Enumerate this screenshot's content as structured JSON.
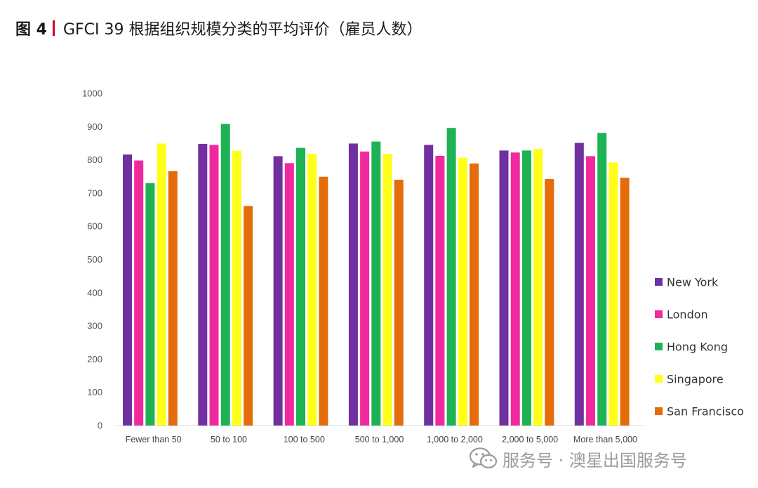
{
  "header": {
    "figure_label": "图 4",
    "title": "GFCI 39 根据组织规模分类的平均评价（雇员人数）"
  },
  "watermark": {
    "text": "服务号 · 澳星出国服务号",
    "icon": "wechat-icon"
  },
  "chart_data": {
    "type": "bar",
    "title": "",
    "xlabel": "",
    "ylabel": "",
    "ylim": [
      0,
      1000
    ],
    "yticks": [
      0,
      100,
      200,
      300,
      400,
      500,
      600,
      700,
      800,
      900,
      1000
    ],
    "grid": false,
    "legend_position": "right",
    "categories": [
      "Fewer than 50",
      "50 to 100",
      "100 to 500",
      "500 to 1,000",
      "1,000 to 2,000",
      "2,000 to 5,000",
      "More than 5,000"
    ],
    "series": [
      {
        "name": "New York",
        "color": "#7030a0",
        "values": [
          816,
          848,
          811,
          849,
          845,
          828,
          851
        ]
      },
      {
        "name": "London",
        "color": "#f0299e",
        "values": [
          798,
          845,
          790,
          825,
          812,
          822,
          811
        ]
      },
      {
        "name": "Hong Kong",
        "color": "#1db254",
        "values": [
          730,
          908,
          836,
          855,
          896,
          828,
          881
        ]
      },
      {
        "name": "Singapore",
        "color": "#ffff1a",
        "values": [
          849,
          827,
          818,
          818,
          806,
          833,
          792
        ]
      },
      {
        "name": "San Francisco",
        "color": "#e46c0a",
        "values": [
          766,
          661,
          749,
          740,
          789,
          742,
          746
        ]
      }
    ]
  }
}
